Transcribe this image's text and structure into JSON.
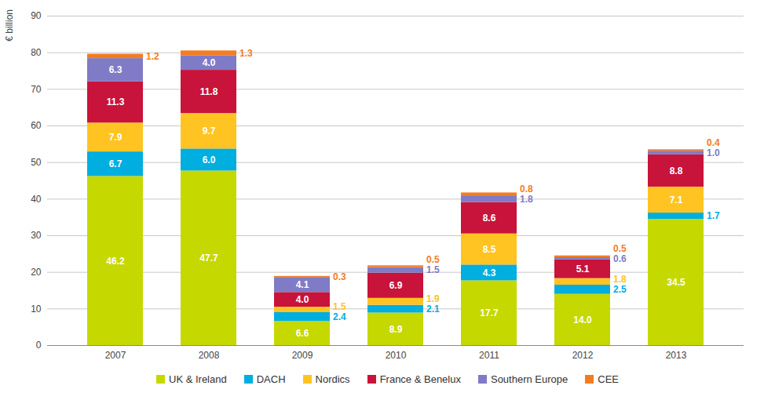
{
  "chart_data": {
    "type": "bar",
    "stacked": true,
    "data_labels": true,
    "grid": true,
    "legend": "bottom",
    "y_label": "€ billion",
    "categories": [
      "2007",
      "2008",
      "2009",
      "2010",
      "2011",
      "2012",
      "2013"
    ],
    "ylim": [
      0,
      90
    ],
    "yticks": [
      0,
      10,
      20,
      30,
      40,
      50,
      60,
      70,
      80,
      90
    ],
    "series": [
      {
        "name": "UK & Ireland",
        "color": "#c5d800",
        "values": [
          46.2,
          47.7,
          6.6,
          8.9,
          17.7,
          14.0,
          34.5
        ],
        "value_labels": [
          "46.2",
          "47.7",
          "6.6",
          "8.9",
          "17.7",
          "14.0",
          "34.5"
        ]
      },
      {
        "name": "DACH",
        "color": "#00aee0",
        "values": [
          6.7,
          6.0,
          2.4,
          2.1,
          4.3,
          2.5,
          1.7
        ],
        "value_labels": [
          "6.7",
          "6.0",
          "2.4",
          "2.1",
          "4.3",
          "2.5",
          "1.7"
        ]
      },
      {
        "name": "Nordics",
        "color": "#ffc421",
        "values": [
          7.9,
          9.7,
          1.5,
          1.9,
          8.5,
          1.8,
          7.1
        ],
        "value_labels": [
          "7.9",
          "9.7",
          "1.5",
          "1.9",
          "8.5",
          "1.8",
          "7.1"
        ]
      },
      {
        "name": "France & Benelux",
        "color": "#c8133a",
        "values": [
          11.3,
          11.8,
          4.0,
          6.9,
          8.6,
          5.1,
          8.8
        ],
        "value_labels": [
          "11.3",
          "11.8",
          "4.0",
          "6.9",
          "8.6",
          "5.1",
          "8.8"
        ]
      },
      {
        "name": "Southern Europe",
        "color": "#7f7bc6",
        "values": [
          6.3,
          4.0,
          4.1,
          1.5,
          1.8,
          0.6,
          1.0
        ],
        "value_labels": [
          "6.3",
          "4.0",
          "4.1",
          "1.5",
          "1.8",
          "0.6",
          "1.0"
        ]
      },
      {
        "name": "CEE",
        "color": "#f47c20",
        "values": [
          1.2,
          1.3,
          0.3,
          0.5,
          0.8,
          0.5,
          0.4
        ],
        "value_labels": [
          "1.2",
          "1.3",
          "0.3",
          "0.5",
          "0.8",
          "0.5",
          "0.4"
        ]
      }
    ]
  }
}
